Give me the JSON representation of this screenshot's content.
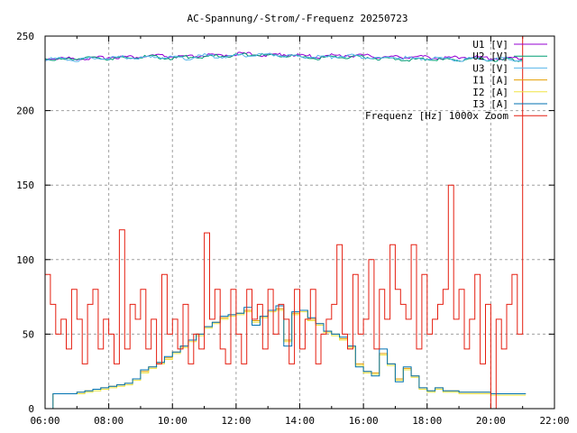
{
  "chart_data": {
    "type": "line",
    "title": "AC-Spannung/-Strom/-Frequenz 20250723",
    "xlabel": "",
    "ylabel": "",
    "xlim_hours": [
      6,
      22
    ],
    "ylim": [
      0,
      250
    ],
    "grid": true,
    "legend_position": "top-right",
    "x_ticks": [
      "06:00",
      "08:00",
      "10:00",
      "12:00",
      "14:00",
      "16:00",
      "18:00",
      "20:00",
      "22:00"
    ],
    "y_ticks": [
      "0",
      "50",
      "100",
      "150",
      "200",
      "250"
    ],
    "series": [
      {
        "name": "U1 [V]",
        "color": "#9400d3",
        "x_start_h": 6,
        "step_h": 0.5,
        "style": "line",
        "values": [
          235,
          235,
          235,
          235,
          236,
          236,
          236,
          237,
          236,
          236,
          237,
          237,
          238,
          238,
          237,
          238,
          237,
          236,
          237,
          237,
          237,
          236,
          236,
          236,
          236,
          235,
          236,
          236,
          235,
          235,
          235
        ]
      },
      {
        "name": "U2 [V]",
        "color": "#009e73",
        "x_start_h": 6,
        "step_h": 0.5,
        "style": "line",
        "values": [
          235,
          234,
          235,
          235,
          235,
          235,
          236,
          236,
          235,
          236,
          236,
          237,
          237,
          238,
          237,
          237,
          236,
          235,
          236,
          236,
          236,
          235,
          235,
          234,
          235,
          234,
          234,
          235,
          234,
          234,
          234
        ]
      },
      {
        "name": "U3 [V]",
        "color": "#56b4e9",
        "x_start_h": 6,
        "step_h": 0.5,
        "style": "line",
        "values": [
          234,
          235,
          234,
          235,
          235,
          236,
          235,
          236,
          236,
          235,
          237,
          236,
          237,
          237,
          238,
          237,
          236,
          236,
          236,
          237,
          236,
          235,
          236,
          235,
          235,
          235,
          234,
          235,
          234,
          235,
          233
        ]
      },
      {
        "name": "I1 [A]",
        "color": "#e69f00",
        "x_start_h": 6,
        "step_h": 0.25,
        "style": "steps",
        "values": [
          0,
          10,
          10,
          10,
          11,
          12,
          13,
          14,
          15,
          16,
          17,
          20,
          25,
          28,
          31,
          34,
          38,
          42,
          46,
          50,
          55,
          58,
          61,
          63,
          64,
          66,
          59,
          62,
          66,
          67,
          46,
          64,
          66,
          60,
          57,
          52,
          50,
          47,
          42,
          30,
          25,
          24,
          37,
          30,
          20,
          27,
          22,
          14,
          12,
          14,
          12,
          12,
          11,
          11,
          11,
          11,
          10,
          10,
          10,
          10,
          10
        ]
      },
      {
        "name": "I2 [A]",
        "color": "#f0e442",
        "x_start_h": 6,
        "step_h": 0.25,
        "style": "steps",
        "values": [
          0,
          10,
          10,
          10,
          10,
          11,
          12,
          13,
          14,
          15,
          16,
          19,
          24,
          27,
          30,
          33,
          37,
          41,
          45,
          49,
          54,
          57,
          60,
          62,
          63,
          65,
          58,
          61,
          65,
          66,
          45,
          63,
          65,
          59,
          56,
          51,
          49,
          46,
          41,
          29,
          24,
          23,
          36,
          29,
          19,
          26,
          21,
          13,
          11,
          13,
          11,
          11,
          10,
          10,
          10,
          10,
          9,
          9,
          9,
          9,
          9
        ]
      },
      {
        "name": "I3 [A]",
        "color": "#0072b2",
        "x_start_h": 6,
        "step_h": 0.25,
        "style": "steps",
        "values": [
          0,
          10,
          10,
          10,
          11,
          12,
          13,
          14,
          15,
          16,
          17,
          20,
          26,
          28,
          31,
          35,
          38,
          42,
          46,
          50,
          55,
          58,
          62,
          63,
          64,
          68,
          56,
          62,
          66,
          69,
          42,
          65,
          66,
          61,
          57,
          52,
          50,
          48,
          42,
          28,
          25,
          22,
          40,
          30,
          18,
          28,
          22,
          14,
          12,
          14,
          12,
          12,
          11,
          11,
          11,
          11,
          10,
          10,
          10,
          10,
          10
        ]
      },
      {
        "name": "Frequenz [Hz] 1000x Zoom",
        "color": "#e51e10",
        "x_start_h": 6,
        "step_h": 0.16667,
        "style": "steps",
        "values": [
          90,
          70,
          50,
          60,
          40,
          80,
          60,
          30,
          70,
          80,
          40,
          60,
          50,
          30,
          120,
          40,
          70,
          60,
          80,
          40,
          60,
          30,
          90,
          50,
          60,
          40,
          70,
          30,
          50,
          40,
          118,
          60,
          80,
          40,
          30,
          80,
          50,
          30,
          80,
          60,
          70,
          40,
          80,
          50,
          70,
          60,
          30,
          80,
          40,
          60,
          80,
          30,
          50,
          60,
          70,
          110,
          50,
          40,
          90,
          50,
          60,
          100,
          40,
          80,
          60,
          110,
          80,
          70,
          60,
          110,
          40,
          90,
          50,
          60,
          70,
          80,
          150,
          60,
          80,
          40,
          60,
          90,
          30,
          70,
          0,
          60,
          40,
          70,
          90,
          50,
          250
        ]
      }
    ]
  }
}
